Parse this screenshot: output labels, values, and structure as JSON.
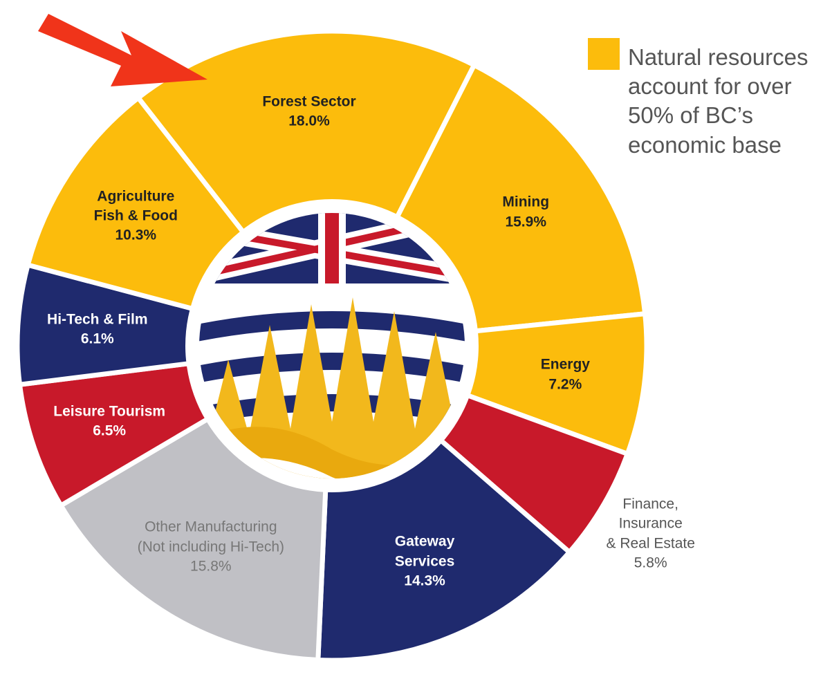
{
  "chart_data": {
    "type": "donut",
    "categories": [
      "Forest Sector",
      "Mining",
      "Energy",
      "Finance,\nInsurance\n& Real Estate",
      "Gateway\nServices",
      "Other Manufacturing\n(Not including Hi-Tech)",
      "Leisure Tourism",
      "Hi-Tech & Film",
      "Agriculture\nFish & Food"
    ],
    "values": [
      18.0,
      15.9,
      7.2,
      5.8,
      14.3,
      15.8,
      6.5,
      6.1,
      10.3
    ],
    "value_labels": [
      "18.0%",
      "15.9%",
      "7.2%",
      "5.8%",
      "14.3%",
      "15.8%",
      "6.5%",
      "6.1%",
      "10.3%"
    ],
    "colors": [
      "#fcbc0c",
      "#fcbc0c",
      "#fcbc0c",
      "#c8192a",
      "#1f2a6e",
      "#c0c0c5",
      "#c8192a",
      "#1f2a6e",
      "#fcbc0c"
    ],
    "legend": {
      "color": "#fcbc0c",
      "label": "Natural resources\naccount for over\n50% of BC’s\neconomic base"
    }
  }
}
